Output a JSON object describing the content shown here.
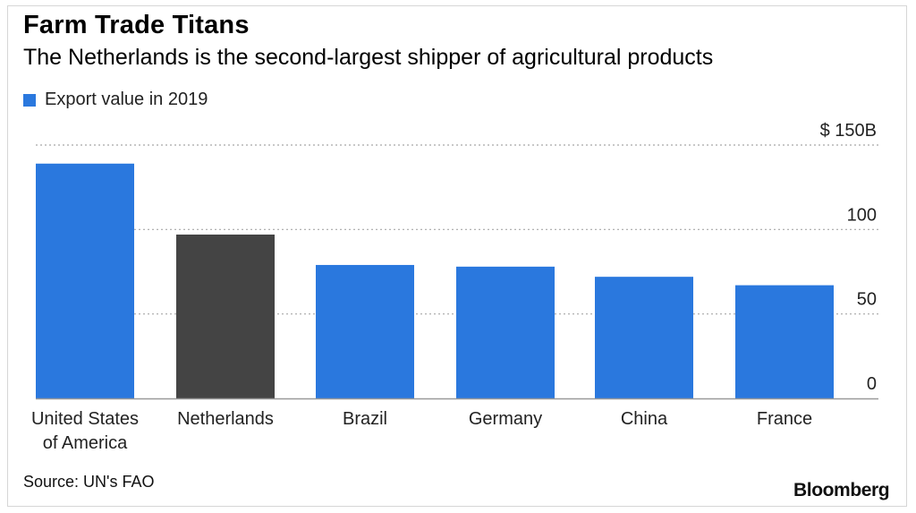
{
  "title": "Farm Trade Titans",
  "subtitle": "The Netherlands is the second-largest shipper of agricultural products",
  "source": "Source: UN's FAO",
  "logo": "Bloomberg",
  "colors": {
    "primary": "#2a78de",
    "highlight": "#444444",
    "grid": "#a8a8a8",
    "axis": "#9a9a9a"
  },
  "chart_data": {
    "type": "bar",
    "categories": [
      "United States of America",
      "Netherlands",
      "Brazil",
      "Germany",
      "China",
      "France"
    ],
    "category_lines": [
      [
        "United States",
        "of America"
      ],
      [
        "Netherlands"
      ],
      [
        "Brazil"
      ],
      [
        "Germany"
      ],
      [
        "China"
      ],
      [
        "France"
      ]
    ],
    "series": [
      {
        "name": "Export value in 2019",
        "values": [
          139,
          97,
          79,
          78,
          72,
          67
        ]
      }
    ],
    "highlight_index": 1,
    "y_ticks": [
      {
        "value": 150,
        "label": "$ 150B"
      },
      {
        "value": 100,
        "label": "100"
      },
      {
        "value": 50,
        "label": "50"
      },
      {
        "value": 0,
        "label": "0"
      }
    ],
    "ylim": [
      0,
      150
    ],
    "grid": true,
    "legend_position": "top-left"
  }
}
